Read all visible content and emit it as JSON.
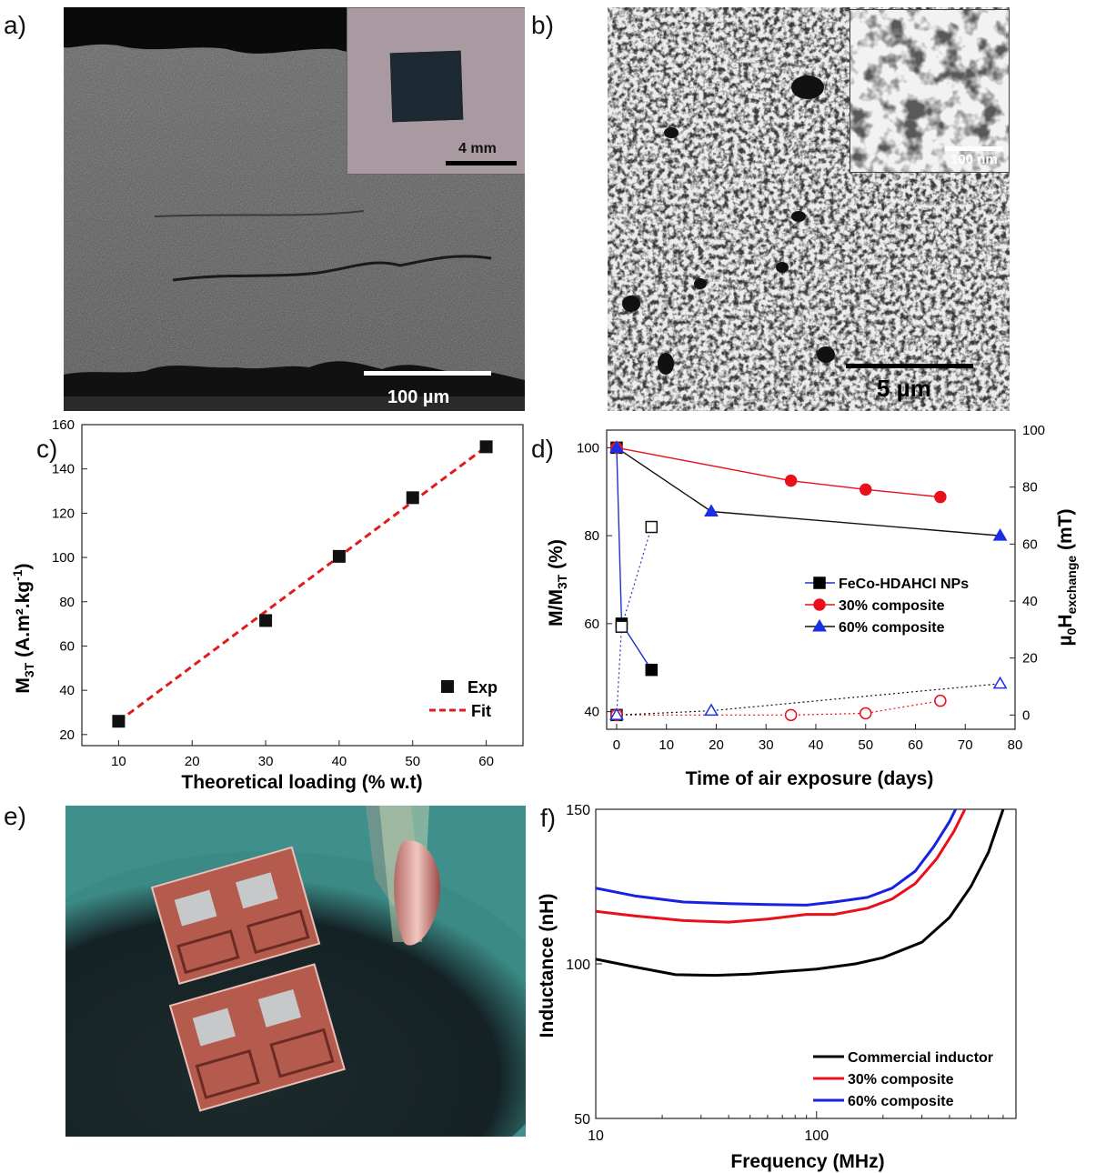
{
  "panels": {
    "a": {
      "label": "a)",
      "scale_main": "100 µm",
      "scale_inset": "4 mm"
    },
    "b": {
      "label": "b)",
      "scale_main": "5 µm",
      "scale_inset": "100 nm"
    },
    "e": {
      "label": "e)"
    }
  },
  "chart_data": [
    {
      "panel": "c)",
      "type": "scatter",
      "xlabel": "Theoretical loading (% w.t)",
      "ylabel_main": "M",
      "ylabel_sub": "3T",
      "ylabel_unit": " (A.m².kg",
      "ylabel_sup": "-1",
      "ylabel_end": ")",
      "xlim": [
        5,
        65
      ],
      "ylim": [
        15,
        160
      ],
      "xticks": [
        10,
        20,
        30,
        40,
        50,
        60
      ],
      "yticks": [
        20,
        40,
        60,
        80,
        100,
        120,
        140,
        160
      ],
      "legend_position": "bottom-right",
      "series": [
        {
          "name": "Exp",
          "style": "markers",
          "color": "#111111",
          "x": [
            10,
            30,
            40,
            50,
            60
          ],
          "y": [
            26,
            71.5,
            100.5,
            127,
            150
          ]
        },
        {
          "name": "Fit",
          "style": "dashed-line",
          "color": "#e31a1c",
          "x": [
            10,
            60
          ],
          "y": [
            26,
            150
          ]
        }
      ]
    },
    {
      "panel": "d)",
      "type": "line",
      "xlabel": "Time of air exposure (days)",
      "ylabel_left_main": "M/M",
      "ylabel_left_sub": "3T",
      "ylabel_left_unit": " (%)",
      "ylabel_right_pre": "µ",
      "ylabel_right_sub1": "0",
      "ylabel_right_mid": "H",
      "ylabel_right_sub2": "exchange",
      "ylabel_right_unit": " (mT)",
      "xlim": [
        -2,
        80
      ],
      "ylim_left": [
        36,
        104
      ],
      "ylim_right": [
        -5,
        100
      ],
      "xticks": [
        0,
        10,
        20,
        30,
        40,
        50,
        60,
        70,
        80
      ],
      "yticks_left": [
        40,
        60,
        80,
        100
      ],
      "yticks_right": [
        0,
        20,
        40,
        60,
        80,
        100
      ],
      "legend_position": "center-right",
      "series": [
        {
          "name": "FeCo-HDAHCl NPs",
          "axis": "left",
          "marker": "square",
          "filled": true,
          "marker_color": "#000000",
          "line_color": "#2233cc",
          "x": [
            0,
            1,
            7
          ],
          "y": [
            100,
            60,
            49.5
          ]
        },
        {
          "name": "30% composite",
          "axis": "left",
          "marker": "circle",
          "filled": true,
          "marker_color": "#e8101a",
          "line_color": "#e8101a",
          "x": [
            0,
            35,
            50,
            65
          ],
          "y": [
            100,
            92.5,
            90.5,
            88.8
          ]
        },
        {
          "name": "60% composite",
          "axis": "left",
          "marker": "triangle",
          "filled": true,
          "marker_color": "#1a2ee8",
          "line_color": "#111111",
          "x": [
            0,
            19,
            77
          ],
          "y": [
            100,
            85.5,
            80
          ]
        },
        {
          "name": "",
          "axis": "right",
          "marker": "square",
          "filled": false,
          "marker_color": "#111111",
          "line_color": "#2233cc",
          "x": [
            0,
            1,
            7
          ],
          "y": [
            0,
            31,
            66
          ]
        },
        {
          "name": "",
          "axis": "right",
          "marker": "circle",
          "filled": false,
          "marker_color": "#e8101a",
          "line_color": "#e8101a",
          "x": [
            0,
            35,
            50,
            65
          ],
          "y": [
            0,
            0,
            0.6,
            5
          ]
        },
        {
          "name": "",
          "axis": "right",
          "marker": "triangle",
          "filled": false,
          "marker_color": "#1a2ee8",
          "line_color": "#111111",
          "x": [
            0,
            19,
            77
          ],
          "y": [
            0,
            1.5,
            11
          ]
        }
      ]
    },
    {
      "panel": "f)",
      "type": "line",
      "xlabel": "Frequency (MHz)",
      "ylabel": "Inductance (nH)",
      "xscale": "log",
      "xlim": [
        10,
        800
      ],
      "ylim": [
        50,
        150
      ],
      "xticks": [
        10,
        100
      ],
      "yticks": [
        50,
        100,
        150
      ],
      "legend_position": "bottom-right",
      "series": [
        {
          "name": "Commercial inductor",
          "color": "#000000",
          "x": [
            10,
            15,
            23,
            35,
            50,
            70,
            100,
            150,
            200,
            300,
            400,
            500,
            600,
            700
          ],
          "y": [
            101.5,
            99,
            96.5,
            96.3,
            96.7,
            97.5,
            98.3,
            100,
            102,
            107,
            115,
            125,
            136,
            150
          ]
        },
        {
          "name": "30% composite",
          "color": "#e8101a",
          "x": [
            10,
            15,
            25,
            40,
            60,
            90,
            120,
            170,
            220,
            280,
            350,
            420,
            470,
            500
          ],
          "y": [
            117,
            115.5,
            114,
            113.5,
            114.5,
            116,
            116,
            118,
            121,
            126,
            134,
            143,
            150,
            155
          ]
        },
        {
          "name": "60% composite",
          "color": "#1722e0",
          "x": [
            10,
            15,
            25,
            40,
            60,
            90,
            120,
            170,
            220,
            280,
            340,
            400,
            440
          ],
          "y": [
            124.5,
            122,
            120,
            119.5,
            119.2,
            119,
            120,
            121.5,
            124.5,
            130,
            138,
            146,
            152
          ]
        }
      ]
    }
  ]
}
